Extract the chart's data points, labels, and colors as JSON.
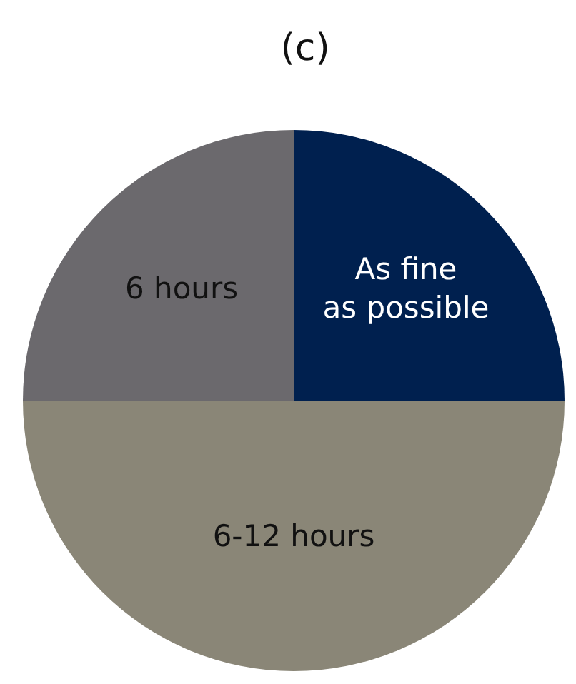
{
  "chart_data": {
    "type": "pie",
    "title": "(c)",
    "categories": [
      "As fine\nas possible",
      "6-12 hours",
      "6 hours"
    ],
    "values": [
      25,
      50,
      25
    ],
    "colors": [
      "#00204f",
      "#8a8677",
      "#6b696d"
    ],
    "legend": false
  }
}
